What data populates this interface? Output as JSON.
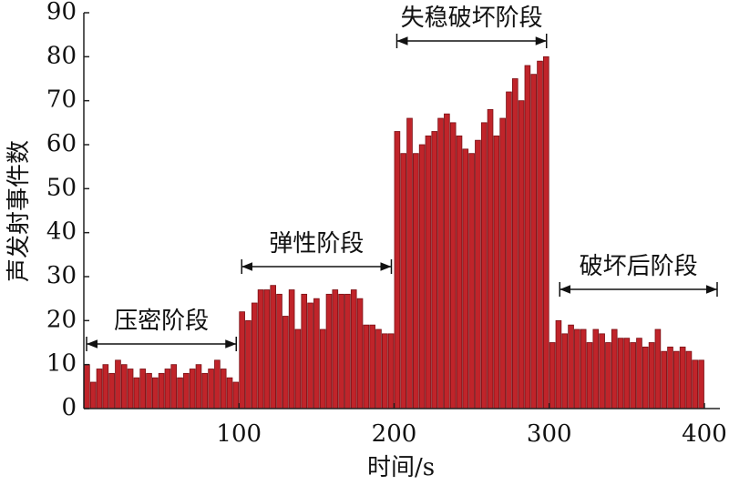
{
  "chart_data": {
    "type": "bar",
    "x_label": "时间/s",
    "y_label": "声发射事件数",
    "x": [
      2,
      6,
      10,
      14,
      18,
      22,
      26,
      30,
      34,
      38,
      42,
      46,
      50,
      54,
      58,
      62,
      66,
      70,
      74,
      78,
      82,
      86,
      90,
      94,
      98,
      102,
      106,
      110,
      114,
      118,
      122,
      126,
      130,
      134,
      138,
      142,
      146,
      150,
      154,
      158,
      162,
      166,
      170,
      174,
      178,
      182,
      186,
      190,
      194,
      198,
      202,
      206,
      210,
      214,
      218,
      222,
      226,
      230,
      234,
      238,
      242,
      246,
      250,
      254,
      258,
      262,
      266,
      270,
      274,
      278,
      282,
      286,
      290,
      294,
      298,
      302,
      306,
      310,
      314,
      318,
      322,
      326,
      330,
      334,
      338,
      342,
      346,
      350,
      354,
      358,
      362,
      366,
      370,
      374,
      378,
      382,
      386,
      390,
      394,
      398
    ],
    "values": [
      10,
      6,
      9,
      10,
      8,
      11,
      10,
      9,
      7,
      9,
      8,
      7,
      8,
      9,
      10,
      7,
      8,
      9,
      10,
      8,
      9,
      11,
      9,
      7,
      6,
      22,
      20,
      24,
      27,
      27,
      28,
      26,
      21,
      27,
      18,
      26,
      24,
      25,
      18,
      26,
      27,
      26,
      26,
      27,
      25,
      19,
      19,
      18,
      17,
      17,
      63,
      58,
      66,
      58,
      60,
      62,
      63,
      66,
      67,
      65,
      62,
      59,
      58,
      61,
      65,
      68,
      62,
      66,
      72,
      75,
      70,
      78,
      76,
      79,
      80,
      15,
      20,
      17,
      19,
      18,
      18,
      15,
      18,
      17,
      15,
      18,
      16,
      16,
      15,
      16,
      14,
      15,
      18,
      13,
      14,
      13,
      14,
      13,
      11,
      11
    ],
    "bar_width": 4,
    "color": "#c0242a",
    "xlim": [
      0,
      410
    ],
    "xticks": [
      100,
      200,
      300,
      400
    ],
    "ylim": [
      0,
      90
    ],
    "yticks": [
      0,
      10,
      20,
      30,
      40,
      50,
      60,
      70,
      80,
      90
    ],
    "annotations": [
      {
        "text": "压密阶段",
        "start": 0,
        "end": 100
      },
      {
        "text": "弹性阶段",
        "start": 100,
        "end": 200
      },
      {
        "text": "失稳破坏阶段",
        "start": 200,
        "end": 300
      },
      {
        "text": "破坏后阶段",
        "start": 305,
        "end": 410
      }
    ]
  }
}
